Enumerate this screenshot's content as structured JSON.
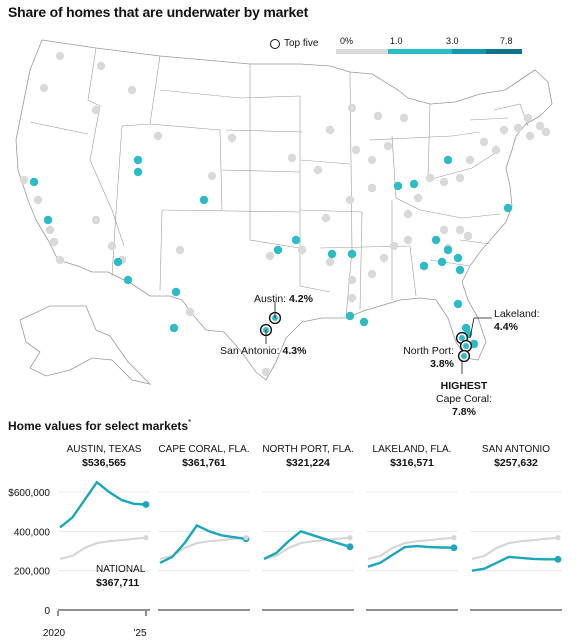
{
  "title": "Share of homes that are underwater by market",
  "map_legend": {
    "top_five_label": "Top five",
    "scale_labels": [
      "0%",
      "1.0",
      "3.0",
      "7.8"
    ],
    "colors": [
      "#d9d9d9",
      "#2cbcc8",
      "#1896b0",
      "#13718a"
    ]
  },
  "map_annotations": {
    "austin": {
      "name": "Austin:",
      "value": "4.2%"
    },
    "san_antonio": {
      "name": "San Antonio:",
      "value": "4.3%"
    },
    "lakeland": {
      "name": "Lakeland:",
      "value": "4.4%"
    },
    "north_port": {
      "name": "North Port:",
      "value": "3.8%"
    },
    "cape_coral": {
      "highest": "HIGHEST",
      "name": "Cape Coral:",
      "value": "7.8%"
    }
  },
  "subtitle": "Home values for select markets",
  "subtitle_mark": "*",
  "chart_data": {
    "type": "line",
    "y_ticks": [
      "$600,000",
      "400,000",
      "200,000",
      "0"
    ],
    "ylim": [
      0,
      600000
    ],
    "x_ticks": [
      "2020",
      "'25"
    ],
    "national": {
      "label": "NATIONAL",
      "value": "$367,711"
    },
    "colors": {
      "market": "#1aa7bd",
      "national": "#d6d6d6"
    },
    "panels": [
      {
        "name": "AUSTIN, TEXAS",
        "value": "$536,565",
        "series": [
          {
            "values": [
              420000,
              470000,
              560000,
              650000,
              600000,
              560000,
              540000,
              536565
            ]
          }
        ]
      },
      {
        "name": "CAPE CORAL, FLA.",
        "value": "$361,761",
        "series": [
          {
            "values": [
              240000,
              270000,
              340000,
              430000,
              400000,
              380000,
              370000,
              361761
            ]
          }
        ]
      },
      {
        "name": "NORTH PORT, FLA.",
        "value": "$321,224",
        "series": [
          {
            "values": [
              260000,
              290000,
              350000,
              400000,
              380000,
              360000,
              340000,
              321224
            ]
          }
        ]
      },
      {
        "name": "LAKELAND, FLA.",
        "value": "$316,571",
        "series": [
          {
            "values": [
              220000,
              240000,
              280000,
              320000,
              325000,
              320000,
              318000,
              316571
            ]
          }
        ]
      },
      {
        "name": "SAN ANTONIO",
        "value": "$257,632",
        "series": [
          {
            "values": [
              200000,
              210000,
              240000,
              270000,
              265000,
              260000,
              258000,
              257632
            ]
          }
        ]
      }
    ],
    "national_values": [
      260000,
      275000,
      315000,
      340000,
      350000,
      355000,
      362000,
      367711
    ]
  }
}
